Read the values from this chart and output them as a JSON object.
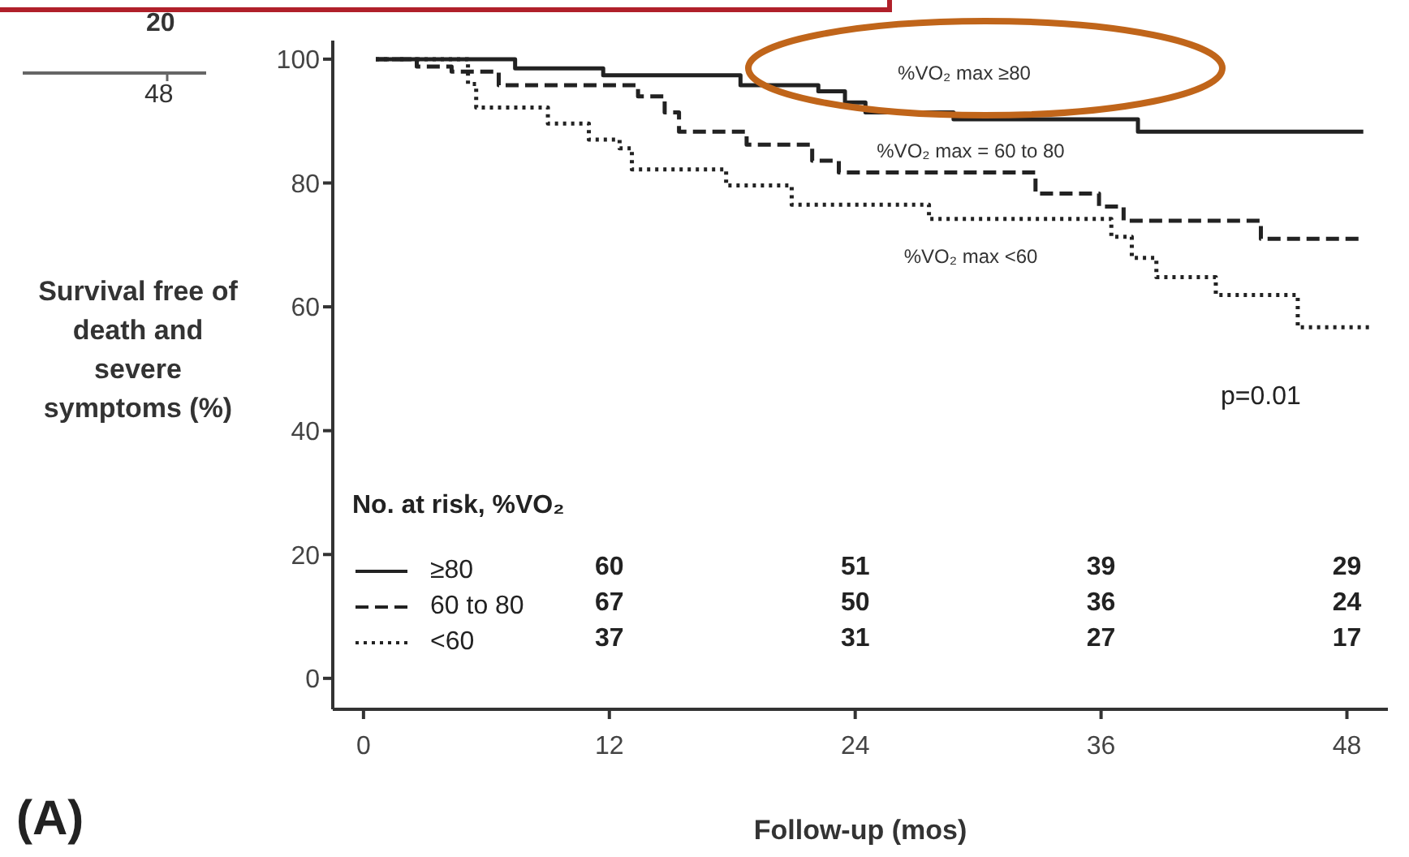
{
  "chart_data": {
    "type": "step",
    "xlabel": "Follow-up (mos)",
    "ylabel": "Survival free of death and severe symptoms (%)",
    "legend_title": "No. at risk, %VO₂",
    "legend": "bottom left",
    "xlim": [
      -1.5,
      50
    ],
    "xticks": [
      0,
      12,
      24,
      36,
      48
    ],
    "ylim": [
      -5,
      103
    ],
    "yticks": [
      0,
      20,
      40,
      60,
      80,
      100
    ],
    "marker": "none",
    "series": [
      {
        "name": "≥80",
        "color": "#222222",
        "line_style": "solid",
        "x": [
          0.6,
          7.4,
          11.7,
          18.4,
          22.2,
          23.5,
          24.5,
          28.8,
          37.8,
          48.8
        ],
        "values": [
          100,
          98.5,
          97.4,
          95.8,
          94.8,
          93,
          91.4,
          90.3,
          88.3,
          88.3
        ]
      },
      {
        "name": "60 to 80",
        "color": "#222222",
        "line_style": "dashed",
        "x": [
          0.6,
          2.6,
          4.3,
          6.6,
          13.4,
          14.7,
          15.4,
          18.7,
          21.9,
          23.2,
          32.8,
          35.9,
          37.1,
          43.8,
          48.8
        ],
        "values": [
          100,
          98.8,
          98,
          95.8,
          94,
          91.4,
          88.3,
          86.2,
          83.6,
          81.7,
          78.3,
          76.2,
          73.9,
          71,
          71
        ]
      },
      {
        "name": "<60",
        "color": "#222222",
        "line_style": "dotted",
        "x": [
          0.6,
          5.1,
          5.5,
          9.0,
          11.0,
          12.5,
          13.1,
          17.7,
          20.9,
          27.6,
          36.5,
          37.5,
          38.7,
          41.6,
          45.6,
          49.2
        ],
        "values": [
          100,
          96,
          92.2,
          89.6,
          87,
          85.6,
          82.2,
          79.6,
          76.5,
          74.2,
          71.3,
          67.9,
          64.8,
          61.9,
          56.7,
          56.7
        ]
      }
    ],
    "annotations": [
      "%VO₂ max ≥80",
      "%VO₂ max = 60 to 80",
      "%VO₂ max <60",
      "p=0.01",
      "(A)",
      "20",
      "48",
      "60",
      "51",
      "39",
      "29",
      "67",
      "50",
      "36",
      "24",
      "37",
      "31",
      "27",
      "17"
    ]
  }
}
